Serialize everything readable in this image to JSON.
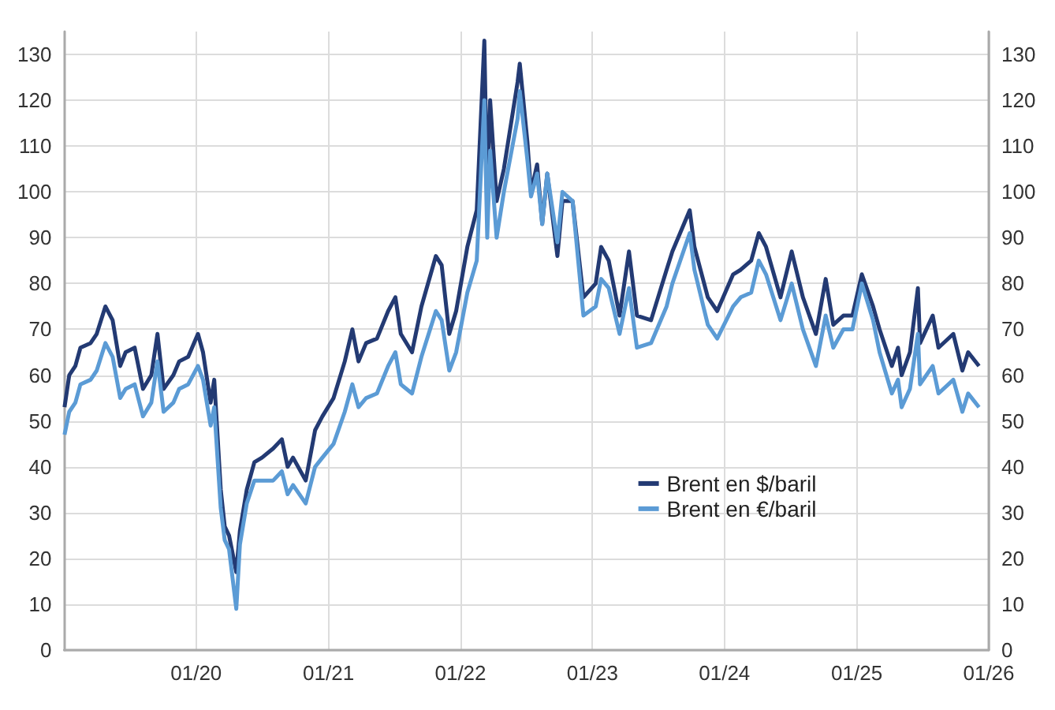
{
  "chart_data": {
    "type": "line",
    "x": [
      "2019-01-02",
      "2019-01-15",
      "2019-02-01",
      "2019-02-15",
      "2019-03-15",
      "2019-04-01",
      "2019-04-25",
      "2019-05-15",
      "2019-06-05",
      "2019-06-20",
      "2019-07-15",
      "2019-08-07",
      "2019-08-30",
      "2019-09-16",
      "2019-10-03",
      "2019-10-30",
      "2019-11-15",
      "2019-12-10",
      "2020-01-06",
      "2020-01-20",
      "2020-02-10",
      "2020-02-20",
      "2020-03-09",
      "2020-03-20",
      "2020-04-01",
      "2020-04-21",
      "2020-05-01",
      "2020-05-20",
      "2020-06-10",
      "2020-07-01",
      "2020-08-01",
      "2020-08-25",
      "2020-09-10",
      "2020-09-25",
      "2020-10-30",
      "2020-11-25",
      "2020-12-15",
      "2021-01-15",
      "2021-02-15",
      "2021-03-08",
      "2021-03-25",
      "2021-04-15",
      "2021-05-15",
      "2021-06-15",
      "2021-07-05",
      "2021-07-20",
      "2021-08-20",
      "2021-09-15",
      "2021-10-25",
      "2021-11-10",
      "2021-12-01",
      "2021-12-20",
      "2022-01-20",
      "2022-02-15",
      "2022-03-08",
      "2022-03-16",
      "2022-03-24",
      "2022-04-11",
      "2022-05-01",
      "2022-06-08",
      "2022-06-14",
      "2022-07-05",
      "2022-07-15",
      "2022-08-01",
      "2022-08-15",
      "2022-08-29",
      "2022-09-26",
      "2022-10-10",
      "2022-11-07",
      "2022-12-07",
      "2023-01-10",
      "2023-01-25",
      "2023-02-15",
      "2023-03-17",
      "2023-04-12",
      "2023-05-04",
      "2023-06-12",
      "2023-07-25",
      "2023-08-10",
      "2023-09-27",
      "2023-10-10",
      "2023-11-16",
      "2023-12-12",
      "2024-01-25",
      "2024-02-15",
      "2024-03-15",
      "2024-04-05",
      "2024-04-25",
      "2024-06-04",
      "2024-07-05",
      "2024-08-05",
      "2024-09-10",
      "2024-10-07",
      "2024-10-28",
      "2024-11-25",
      "2024-12-20",
      "2025-01-15",
      "2025-02-15",
      "2025-03-05",
      "2025-04-08",
      "2025-04-25",
      "2025-05-05",
      "2025-05-28",
      "2025-06-19",
      "2025-06-25",
      "2025-07-30",
      "2025-08-15",
      "2025-09-25",
      "2025-10-20",
      "2025-11-05",
      "2025-12-05"
    ],
    "series": [
      {
        "name": "Brent en $/baril",
        "color": "#233a73",
        "values": [
          53,
          60,
          62,
          66,
          67,
          69,
          75,
          72,
          62,
          65,
          66,
          57,
          60,
          69,
          57,
          60,
          63,
          64,
          69,
          65,
          54,
          59,
          35,
          27,
          25,
          17,
          26,
          35,
          41,
          42,
          44,
          46,
          40,
          42,
          37,
          48,
          51,
          55,
          63,
          70,
          63,
          67,
          68,
          74,
          77,
          69,
          65,
          75,
          86,
          84,
          69,
          74,
          88,
          96,
          133,
          99,
          120,
          98,
          105,
          124,
          128,
          111,
          100,
          106,
          93,
          104,
          86,
          98,
          98,
          77,
          80,
          88,
          85,
          73,
          87,
          73,
          72,
          83,
          87,
          96,
          88,
          77,
          74,
          82,
          83,
          85,
          91,
          88,
          77,
          87,
          77,
          69,
          81,
          71,
          73,
          73,
          82,
          75,
          70,
          62,
          66,
          60,
          65,
          79,
          67,
          73,
          66,
          69,
          61,
          65,
          62
        ]
      },
      {
        "name": "Brent en €/baril",
        "color": "#5b9bd5",
        "values": [
          47,
          52,
          54,
          58,
          59,
          61,
          67,
          64,
          55,
          57,
          58,
          51,
          54,
          63,
          52,
          54,
          57,
          58,
          62,
          59,
          49,
          53,
          31,
          24,
          22,
          9,
          23,
          32,
          37,
          37,
          37,
          39,
          34,
          36,
          32,
          40,
          42,
          45,
          52,
          58,
          53,
          55,
          56,
          62,
          65,
          58,
          56,
          64,
          74,
          72,
          61,
          65,
          78,
          85,
          120,
          90,
          109,
          90,
          100,
          116,
          122,
          107,
          99,
          104,
          93,
          104,
          89,
          100,
          98,
          73,
          75,
          81,
          79,
          69,
          79,
          66,
          67,
          75,
          80,
          91,
          83,
          71,
          68,
          75,
          77,
          78,
          85,
          82,
          72,
          80,
          70,
          62,
          73,
          66,
          70,
          70,
          80,
          72,
          65,
          56,
          59,
          53,
          57,
          69,
          58,
          62,
          56,
          59,
          52,
          56,
          53
        ]
      }
    ],
    "xlim": [
      "2019-01-01",
      "2026-01-01"
    ],
    "xticks": [
      {
        "value": "2020-01-01",
        "label": "01/20"
      },
      {
        "value": "2021-01-01",
        "label": "01/21"
      },
      {
        "value": "2022-01-01",
        "label": "01/22"
      },
      {
        "value": "2023-01-01",
        "label": "01/23"
      },
      {
        "value": "2024-01-01",
        "label": "01/24"
      },
      {
        "value": "2025-01-01",
        "label": "01/25"
      },
      {
        "value": "2026-01-01",
        "label": "01/26"
      }
    ],
    "ylim": [
      0,
      135
    ],
    "yticks": [
      0,
      10,
      20,
      30,
      40,
      50,
      60,
      70,
      80,
      90,
      100,
      110,
      120,
      130
    ],
    "y2lim": [
      0,
      135
    ],
    "y2ticks": [
      0,
      10,
      20,
      30,
      40,
      50,
      60,
      70,
      80,
      90,
      100,
      110,
      120,
      130
    ],
    "grid": true,
    "legend": "bottom right",
    "line_style": "solid",
    "marker": "none"
  }
}
